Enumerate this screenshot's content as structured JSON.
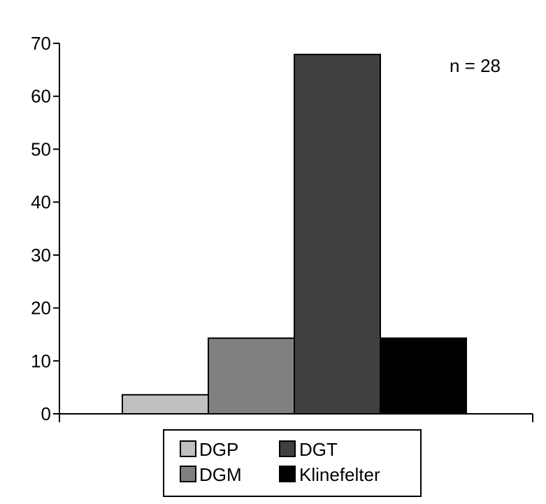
{
  "chart_data": {
    "type": "bar",
    "categories": [
      "DGP",
      "DGM",
      "DGT",
      "Klinefelter"
    ],
    "values": [
      3.6,
      14.3,
      67.9,
      14.3
    ],
    "colors": [
      "#c0c0c0",
      "#808080",
      "#404040",
      "#000000"
    ],
    "ylim": [
      0,
      70
    ],
    "yticks": [
      0,
      10,
      20,
      30,
      40,
      50,
      60,
      70
    ],
    "title": "",
    "xlabel": "",
    "ylabel": "",
    "annotation": "n = 28",
    "grid": false,
    "legend": {
      "placement": "bottom",
      "entries": [
        "DGP",
        "DGT",
        "DGM",
        "Klinefelter"
      ]
    }
  }
}
